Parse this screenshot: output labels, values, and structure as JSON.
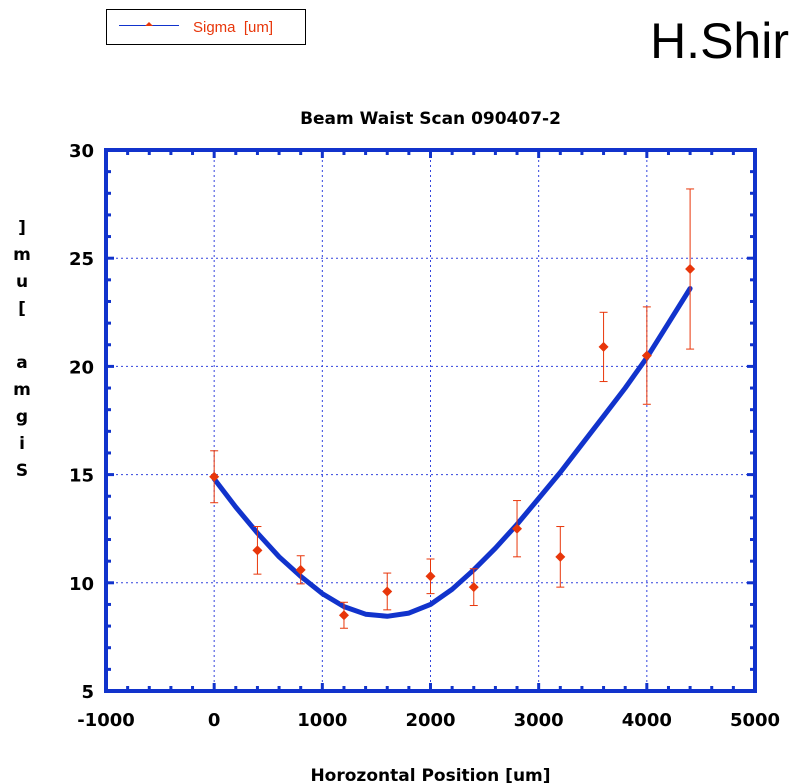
{
  "legend": {
    "label": "Sigma  [um]"
  },
  "author_label": "H.Shir",
  "colors": {
    "axis": "#1133cc",
    "fit": "#1133cc",
    "points": "#e8360a",
    "grid": "#3344dd"
  },
  "chart_data": {
    "type": "scatter",
    "title": "Beam Waist Scan 090407-2",
    "xlabel": "Horozontal Position  [um]",
    "ylabel": "Sigma  [um]",
    "ylabel_display": [
      "]",
      "m",
      "u",
      "[",
      "",
      "a",
      "m",
      "g",
      "i",
      "S"
    ],
    "xlim": [
      -1000,
      5000
    ],
    "ylim": [
      5,
      30
    ],
    "xticks": [
      -1000,
      0,
      1000,
      2000,
      3000,
      4000,
      5000
    ],
    "yticks": [
      5,
      10,
      15,
      20,
      25,
      30
    ],
    "grid": true,
    "legend_position": "top-left (outside plot)",
    "series": [
      {
        "name": "Sigma  [um]",
        "x": [
          0,
          400,
          800,
          1200,
          1600,
          2000,
          2400,
          2800,
          3200,
          3600,
          4000,
          4400
        ],
        "y": [
          14.9,
          11.5,
          10.6,
          8.5,
          9.6,
          10.3,
          9.8,
          12.5,
          11.2,
          20.9,
          20.5,
          24.5
        ],
        "err": [
          1.2,
          1.1,
          0.65,
          0.6,
          0.85,
          0.8,
          0.85,
          1.3,
          1.4,
          1.6,
          2.25,
          3.7
        ]
      }
    ],
    "fit_curve": {
      "type": "line",
      "x": [
        0,
        200,
        400,
        600,
        800,
        1000,
        1200,
        1400,
        1600,
        1800,
        2000,
        2200,
        2400,
        2600,
        2800,
        3000,
        3200,
        3400,
        3600,
        3800,
        4000,
        4200,
        4400
      ],
      "y": [
        14.8,
        13.5,
        12.3,
        11.2,
        10.3,
        9.5,
        8.9,
        8.55,
        8.45,
        8.6,
        9.0,
        9.7,
        10.6,
        11.6,
        12.7,
        13.9,
        15.1,
        16.4,
        17.7,
        19.0,
        20.4,
        22.0,
        23.6
      ]
    }
  }
}
